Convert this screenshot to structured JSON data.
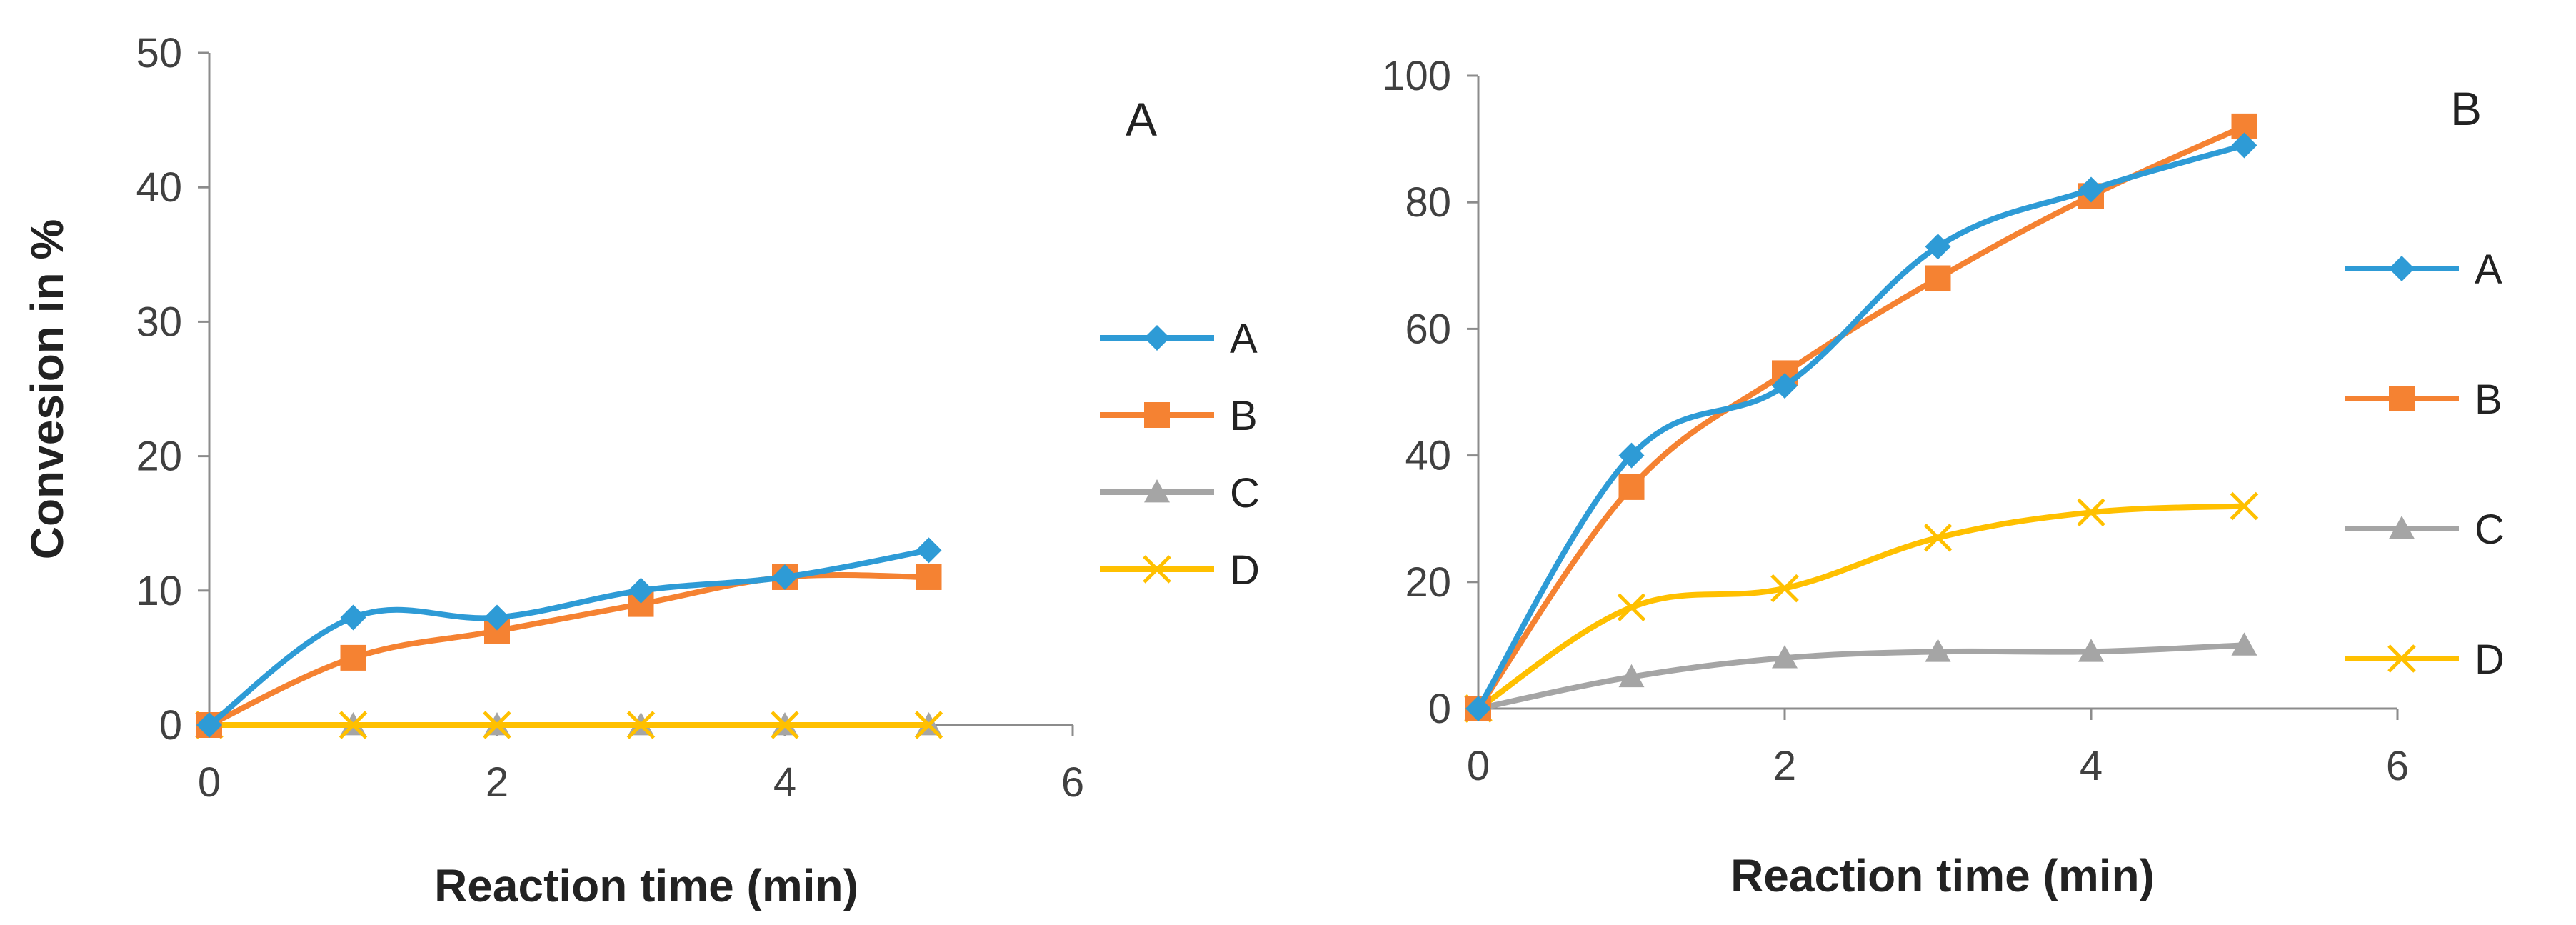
{
  "chart_data": [
    {
      "type": "line",
      "panel_label": "A",
      "xlabel": "Reaction time (min)",
      "ylabel": "Convesion in %",
      "xlim": [
        0,
        6
      ],
      "ylim": [
        0,
        50
      ],
      "xticks": [
        "0",
        "2",
        "4",
        "6"
      ],
      "yticks": [
        "0",
        "10",
        "20",
        "30",
        "40",
        "50"
      ],
      "grid": false,
      "legend_position": "right",
      "x": [
        0,
        1,
        2,
        3,
        4,
        5
      ],
      "series": [
        {
          "name": "A",
          "color": "#2E9BD6",
          "marker": "diamond",
          "values": [
            0,
            8,
            8,
            10,
            11,
            13
          ]
        },
        {
          "name": "B",
          "color": "#F58232",
          "marker": "square",
          "values": [
            0,
            5,
            7,
            9,
            11,
            11
          ]
        },
        {
          "name": "C",
          "color": "#A5A5A5",
          "marker": "triangle",
          "values": [
            0,
            0,
            0,
            0,
            0,
            0
          ]
        },
        {
          "name": "D",
          "color": "#FFC000",
          "marker": "x",
          "values": [
            0,
            0,
            0,
            0,
            0,
            0
          ]
        }
      ]
    },
    {
      "type": "line",
      "panel_label": "B",
      "xlabel": "Reaction time (min)",
      "ylabel": "",
      "xlim": [
        0,
        6
      ],
      "ylim": [
        0,
        100
      ],
      "xticks": [
        "0",
        "2",
        "4",
        "6"
      ],
      "yticks": [
        "0",
        "20",
        "40",
        "60",
        "80",
        "100"
      ],
      "grid": false,
      "legend_position": "right",
      "x": [
        0,
        1,
        2,
        3,
        4,
        5
      ],
      "series": [
        {
          "name": "A",
          "color": "#2E9BD6",
          "marker": "diamond",
          "values": [
            0,
            40,
            51,
            73,
            82,
            89
          ]
        },
        {
          "name": "B",
          "color": "#F58232",
          "marker": "square",
          "values": [
            0,
            35,
            53,
            68,
            81,
            92
          ]
        },
        {
          "name": "C",
          "color": "#A5A5A5",
          "marker": "triangle",
          "values": [
            0,
            5,
            8,
            9,
            9,
            10
          ]
        },
        {
          "name": "D",
          "color": "#FFC000",
          "marker": "x",
          "values": [
            0,
            16,
            19,
            27,
            31,
            32
          ]
        }
      ]
    }
  ]
}
